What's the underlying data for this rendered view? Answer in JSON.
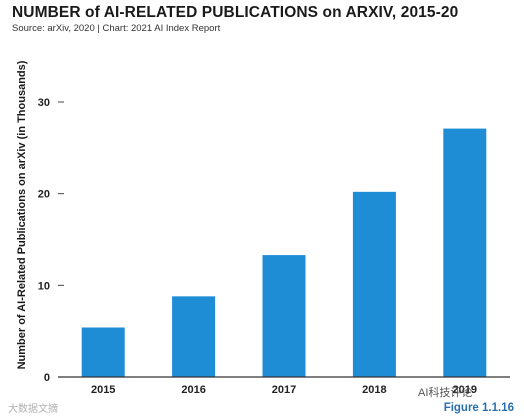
{
  "chart_data": {
    "type": "bar",
    "title": "NUMBER of AI-RELATED PUBLICATIONS on ARXIV, 2015-20",
    "subtitle": "Source: arXiv, 2020 | Chart: 2021 AI Index Report",
    "xlabel": "",
    "ylabel": "Number of AI-Related Publications on arXiv (in Thousands)",
    "categories": [
      "2015",
      "2016",
      "2017",
      "2018",
      "2019"
    ],
    "values": [
      5.4,
      8.8,
      13.3,
      20.2,
      27.1
    ],
    "ylim": [
      0,
      30
    ],
    "yticks": [
      "0",
      "10",
      "20",
      "30"
    ],
    "grid": false,
    "bar_color": "#1f8dd6"
  },
  "figure_label": "Figure 1.1.16",
  "watermark_left": "大数据文摘",
  "watermark_right": "AI科技评论"
}
